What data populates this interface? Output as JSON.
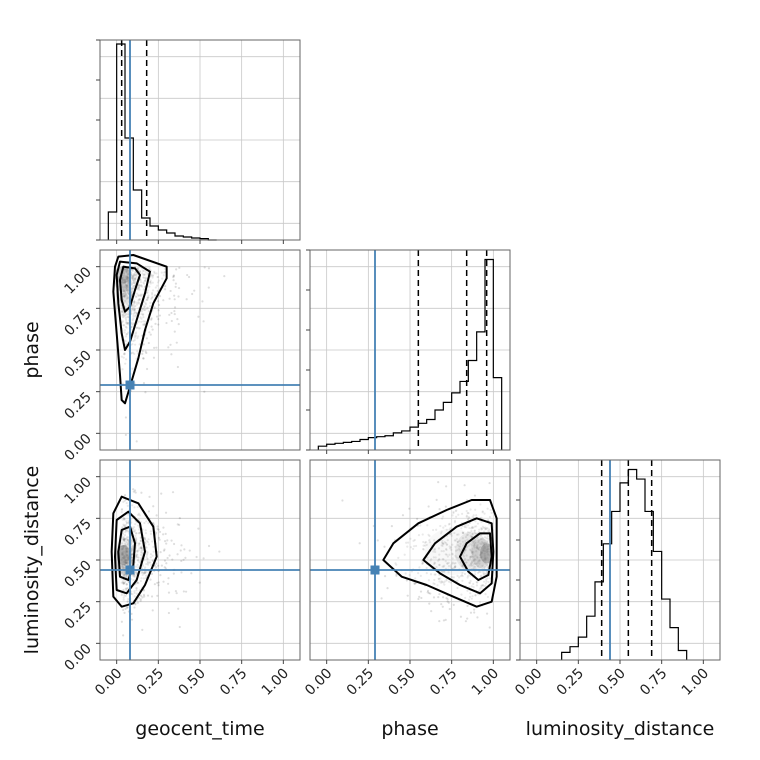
{
  "chart_data": {
    "type": "corner",
    "parameters": [
      "geocent_time",
      "phase",
      "luminosity_distance"
    ],
    "ticks": [
      "0.00",
      "0.25",
      "0.50",
      "0.75",
      "1.00"
    ],
    "tick_values": [
      0,
      0.25,
      0.5,
      0.75,
      1
    ],
    "axis_range": [
      -0.1,
      1.1
    ],
    "truth": {
      "geocent_time": 0.08,
      "phase": 0.29,
      "luminosity_distance": 0.44
    },
    "truth_color": "#4682b4",
    "grid": true,
    "histograms": [
      {
        "parameter": "geocent_time",
        "bin_edges": [
          -0.05,
          0.0,
          0.05,
          0.1,
          0.15,
          0.2,
          0.25,
          0.3,
          0.35,
          0.4,
          0.45,
          0.5,
          0.55,
          0.6
        ],
        "counts": [
          0.14,
          0.98,
          0.51,
          0.25,
          0.11,
          0.07,
          0.05,
          0.035,
          0.02,
          0.015,
          0.01,
          0.007,
          0.0
        ],
        "quantiles": [
          0.03,
          0.18
        ],
        "ymax": 1.0
      },
      {
        "parameter": "phase",
        "bin_edges": [
          -0.05,
          0.0,
          0.05,
          0.1,
          0.15,
          0.2,
          0.25,
          0.3,
          0.35,
          0.4,
          0.45,
          0.5,
          0.55,
          0.6,
          0.65,
          0.7,
          0.75,
          0.8,
          0.85,
          0.9,
          0.95,
          1.0,
          1.05
        ],
        "counts": [
          0.02,
          0.03,
          0.035,
          0.04,
          0.045,
          0.055,
          0.065,
          0.07,
          0.075,
          0.09,
          0.1,
          0.12,
          0.14,
          0.16,
          0.21,
          0.25,
          0.3,
          0.36,
          0.47,
          0.62,
          1.0,
          0.38
        ],
        "quantiles": [
          0.55,
          0.84,
          0.96
        ],
        "ymax": 1.05
      },
      {
        "parameter": "luminosity_distance",
        "bin_edges": [
          0.15,
          0.2,
          0.25,
          0.3,
          0.35,
          0.4,
          0.45,
          0.5,
          0.55,
          0.6,
          0.65,
          0.7,
          0.75,
          0.8,
          0.85,
          0.9
        ],
        "counts": [
          0.04,
          0.07,
          0.12,
          0.23,
          0.41,
          0.61,
          0.78,
          0.93,
          1.0,
          0.95,
          0.78,
          0.57,
          0.32,
          0.17,
          0.05
        ],
        "quantiles": [
          0.39,
          0.55,
          0.69
        ],
        "ymax": 1.05
      }
    ],
    "density_panels": [
      {
        "x": "geocent_time",
        "y": "phase",
        "peak": [
          0.04,
          0.94
        ],
        "spread": [
          0.07,
          0.2
        ],
        "skew": "tail-down-and-right"
      },
      {
        "x": "geocent_time",
        "y": "luminosity_distance",
        "peak": [
          0.04,
          0.53
        ],
        "spread": [
          0.07,
          0.15
        ],
        "skew": "tail-right"
      },
      {
        "x": "phase",
        "y": "luminosity_distance",
        "peak": [
          0.96,
          0.55
        ],
        "spread": [
          0.2,
          0.15
        ],
        "skew": "tail-left"
      }
    ]
  }
}
